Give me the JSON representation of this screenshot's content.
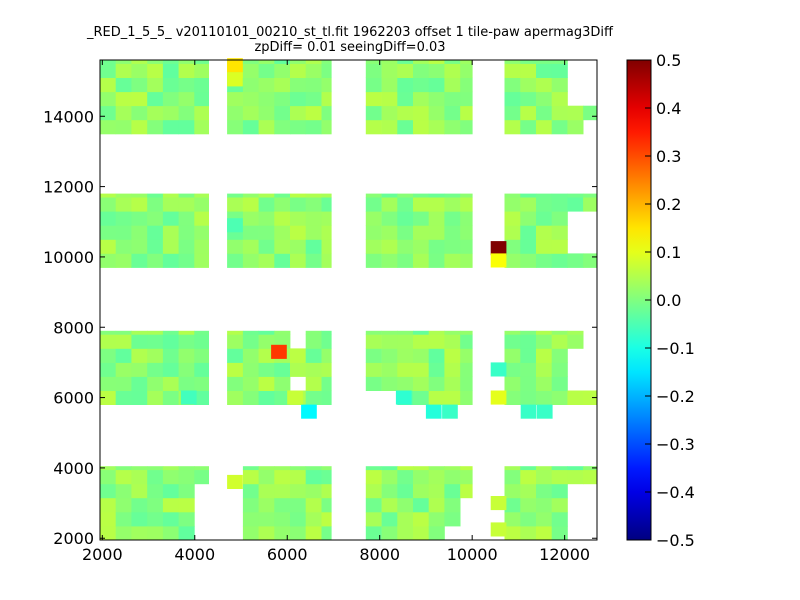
{
  "chart_data": {
    "type": "heatmap",
    "title": "_RED_1_5_5_ v20110101_00210_st_tl.fit 1962203 offset 1 tile-paw apermag3Diff",
    "subtitle": "zpDiff= 0.01 seeingDiff=0.03",
    "xlabel": "",
    "ylabel": "",
    "xlim": [
      1950,
      12700
    ],
    "ylim": [
      1950,
      15600
    ],
    "xticks": [
      2000,
      4000,
      6000,
      8000,
      10000,
      12000
    ],
    "yticks": [
      2000,
      4000,
      6000,
      8000,
      10000,
      12000,
      14000
    ],
    "colorbar": {
      "range": [
        -0.5,
        0.5
      ],
      "ticks": [
        0.5,
        0.4,
        0.3,
        0.2,
        0.1,
        0.0,
        -0.1,
        -0.2,
        -0.3,
        -0.4,
        -0.5
      ],
      "tick_labels": [
        "0.5",
        "0.4",
        "0.3",
        "0.2",
        "0.1",
        "0.0",
        "−0.1",
        "−0.2",
        "−0.3",
        "−0.4",
        "−0.5"
      ],
      "colormap": "jet"
    },
    "cell_size": {
      "dx": 340,
      "dy": 400
    },
    "tile_rows": [
      {
        "y0": 13500,
        "y1": 15600
      },
      {
        "y0": 9700,
        "y1": 11800
      },
      {
        "y0": 5800,
        "y1": 7900
      },
      {
        "y0": 1950,
        "y1": 4050
      }
    ],
    "tile_cols": [
      {
        "x0": 1950,
        "x1": 4300
      },
      {
        "x0": 4700,
        "x1": 6950
      },
      {
        "x0": 7700,
        "x1": 10000
      },
      {
        "x0": 10700,
        "x1": 12700
      }
    ],
    "base_value": 0.01,
    "blank_regions": [
      {
        "x0": 4300,
        "x1": 4650,
        "y0": 1950,
        "y1": 15600
      },
      {
        "x0": 6950,
        "x1": 7700,
        "y0": 1950,
        "y1": 15600
      },
      {
        "x0": 10000,
        "x1": 10400,
        "y0": 1950,
        "y1": 15600
      },
      {
        "x0": 10400,
        "x1": 10700,
        "y0": 13500,
        "y1": 15600
      },
      {
        "x0": 10400,
        "x1": 10700,
        "y0": 5800,
        "y1": 7900
      },
      {
        "x0": 10400,
        "x1": 10700,
        "y0": 3200,
        "y1": 4050
      },
      {
        "x0": 12000,
        "x1": 12700,
        "y0": 14300,
        "y1": 15600
      },
      {
        "x0": 12300,
        "x1": 12700,
        "y0": 13500,
        "y1": 13750
      },
      {
        "x0": 12000,
        "x1": 12700,
        "y0": 10000,
        "y1": 11450
      },
      {
        "x0": 12350,
        "x1": 12700,
        "y0": 7550,
        "y1": 7900
      },
      {
        "x0": 12000,
        "x1": 12700,
        "y0": 6250,
        "y1": 7550
      },
      {
        "x0": 12000,
        "x1": 12700,
        "y0": 1950,
        "y1": 3700
      },
      {
        "x0": 4000,
        "x1": 4300,
        "y0": 1950,
        "y1": 3700
      },
      {
        "x0": 4650,
        "x1": 5000,
        "y0": 1950,
        "y1": 3400
      },
      {
        "x0": 4650,
        "x1": 5000,
        "y0": 3750,
        "y1": 4050
      },
      {
        "x0": 6000,
        "x1": 6300,
        "y0": 6150,
        "y1": 6500
      },
      {
        "x0": 6000,
        "x1": 6300,
        "y0": 7550,
        "y1": 7900
      },
      {
        "x0": 7700,
        "x1": 8000,
        "y0": 5800,
        "y1": 6150
      },
      {
        "x0": 8000,
        "x1": 8350,
        "y0": 5800,
        "y1": 6100
      },
      {
        "x0": 9600,
        "x1": 10000,
        "y0": 2300,
        "y1": 2650
      },
      {
        "x0": 9600,
        "x1": 10000,
        "y0": 2700,
        "y1": 3250
      },
      {
        "x0": 9300,
        "x1": 10000,
        "y0": 1950,
        "y1": 2300
      }
    ],
    "highlight_cells": [
      {
        "x": 10400,
        "y": 10050,
        "value": 0.5
      },
      {
        "x": 10400,
        "y": 9700,
        "value": 0.12
      },
      {
        "x": 5650,
        "y": 7100,
        "value": 0.32
      },
      {
        "x": 4700,
        "y": 15250,
        "value": 0.15
      },
      {
        "x": 4700,
        "y": 14850,
        "value": 0.09
      },
      {
        "x": 10400,
        "y": 5800,
        "value": 0.1
      },
      {
        "x": 6300,
        "y": 5400,
        "value": -0.13
      },
      {
        "x": 6000,
        "y": 5800,
        "value": 0.07
      },
      {
        "x": 8350,
        "y": 5800,
        "value": -0.08
      },
      {
        "x": 9000,
        "y": 5400,
        "value": -0.09
      },
      {
        "x": 9350,
        "y": 5400,
        "value": -0.07
      },
      {
        "x": 11050,
        "y": 5400,
        "value": -0.07
      },
      {
        "x": 11400,
        "y": 5400,
        "value": -0.07
      },
      {
        "x": 4700,
        "y": 3400,
        "value": 0.08
      },
      {
        "x": 10400,
        "y": 2800,
        "value": 0.07
      },
      {
        "x": 10400,
        "y": 2050,
        "value": 0.07
      },
      {
        "x": 3700,
        "y": 5800,
        "value": -0.06
      },
      {
        "x": 4700,
        "y": 10700,
        "value": -0.05
      },
      {
        "x": 10400,
        "y": 6600,
        "value": -0.07
      }
    ]
  }
}
